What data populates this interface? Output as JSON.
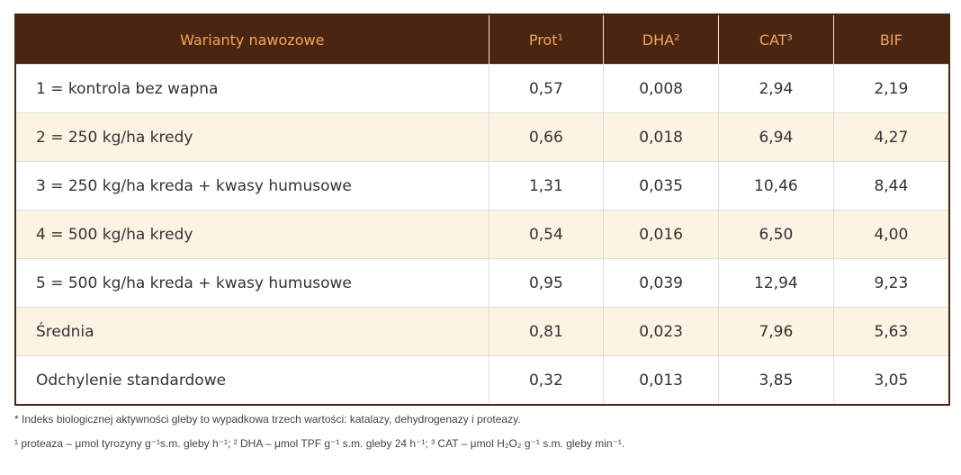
{
  "table": {
    "header": [
      "Warianty nawozowe",
      "Prot¹",
      "DHA²",
      "CAT³",
      "BIF"
    ],
    "rows": [
      [
        "1 = kontrola bez wapna",
        "0,57",
        "0,008",
        "2,94",
        "2,19"
      ],
      [
        "2 = 250 kg/ha kredy",
        "0,66",
        "0,018",
        "6,94",
        "4,27"
      ],
      [
        "3 = 250 kg/ha kreda + kwasy humusowe",
        "1,31",
        "0,035",
        "10,46",
        "8,44"
      ],
      [
        "4 = 500 kg/ha kredy",
        "0,54",
        "0,016",
        "6,50",
        "4,00"
      ],
      [
        "5 = 500 kg/ha kreda + kwasy humusowe",
        "0,95",
        "0,039",
        "12,94",
        "9,23"
      ],
      [
        "Średnia",
        "0,81",
        "0,023",
        "7,96",
        "5,63"
      ],
      [
        "Odchylenie standardowe",
        "0,32",
        "0,013",
        "3,85",
        "3,05"
      ]
    ]
  },
  "footnotes": [
    "* Indeks biologicznej aktywności gleby to wypadkowa trzech wartości: katalazy, dehydrogenazy i proteazy.",
    "¹ proteaza – μmol tyrozyny g⁻¹s.m. gleby h⁻¹; ² DHA – μmol TPF g⁻¹ s.m. gleby 24 h⁻¹; ³ CAT – μmol H₂O₂ g⁻¹ s.m. gleby min⁻¹."
  ]
}
